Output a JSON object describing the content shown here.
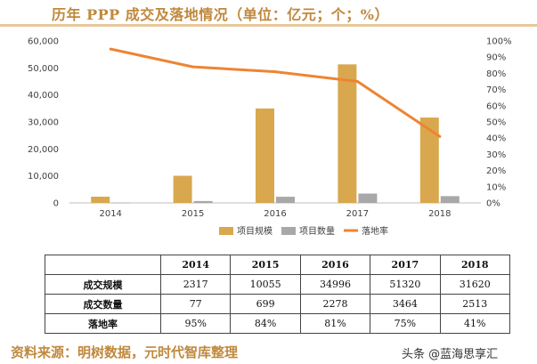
{
  "title": "历年 PPP 成交及落地情况（单位：亿元；个；%）",
  "colors": {
    "accent": "#c0883c",
    "bar_scale": "#d9a84e",
    "bar_count": "#a8a8a8",
    "line_rate": "#ee8433"
  },
  "chart_data": {
    "type": "bar",
    "categories": [
      "2014",
      "2015",
      "2016",
      "2017",
      "2018"
    ],
    "series": [
      {
        "name": "项目规模",
        "kind": "bar",
        "axis": "left",
        "values": [
          2317,
          10055,
          34996,
          51320,
          31620
        ]
      },
      {
        "name": "项目数量",
        "kind": "bar",
        "axis": "left",
        "values": [
          77,
          699,
          2278,
          3464,
          2513
        ]
      },
      {
        "name": "落地率",
        "kind": "line",
        "axis": "right",
        "values": [
          95,
          84,
          81,
          75,
          41
        ]
      }
    ],
    "left_axis": {
      "ylim": [
        0,
        60000
      ],
      "ticks": [
        "0",
        "10,000",
        "20,000",
        "30,000",
        "40,000",
        "50,000",
        "60,000"
      ]
    },
    "right_axis": {
      "ylim": [
        0,
        100
      ],
      "ticks": [
        "0%",
        "10%",
        "20%",
        "30%",
        "40%",
        "50%",
        "60%",
        "70%",
        "80%",
        "90%",
        "100%"
      ]
    },
    "legend_position": "bottom",
    "grid": false
  },
  "table": {
    "headers": [
      "",
      "2014",
      "2015",
      "2016",
      "2017",
      "2018"
    ],
    "rows": [
      {
        "label": "成交规模",
        "cells": [
          "2317",
          "10055",
          "34996",
          "51320",
          "31620"
        ]
      },
      {
        "label": "成交数量",
        "cells": [
          "77",
          "699",
          "2278",
          "3464",
          "2513"
        ]
      },
      {
        "label": "落地率",
        "cells": [
          "95%",
          "84%",
          "81%",
          "75%",
          "41%"
        ]
      }
    ]
  },
  "source_note": "资料来源：明树数据，元时代智库整理",
  "watermark": "头条 @蓝海思享汇"
}
